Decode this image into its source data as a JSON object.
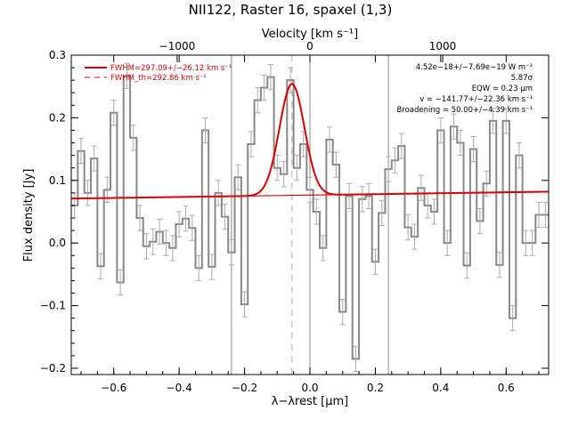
{
  "chart_data": {
    "type": "line",
    "title": "NII122, Raster 16, spaxel (1,3)",
    "xlabel": "λ−λrest [μm]",
    "ylabel": "Flux density [Jy]",
    "top_axis_label": "Velocity [km s⁻¹]",
    "xlim": [
      -0.73,
      0.73
    ],
    "ylim": [
      -0.21,
      0.3
    ],
    "x_ticks": [
      -0.6,
      -0.4,
      -0.2,
      0.0,
      0.2,
      0.4,
      0.6
    ],
    "x_tick_labels": [
      "−0.6",
      "−0.4",
      "−0.2",
      "0.0",
      "0.2",
      "0.4",
      "0.6"
    ],
    "y_ticks": [
      -0.2,
      -0.1,
      0.0,
      0.1,
      0.2,
      0.3
    ],
    "y_tick_labels": [
      "−0.2",
      "−0.1",
      "0.0",
      "0.1",
      "0.2",
      "0.3"
    ],
    "top_ticks": [
      -1000,
      0,
      1000
    ],
    "top_tick_labels": [
      "−1000",
      "0",
      "1000"
    ],
    "legend": {
      "placement": "top-left",
      "entries": [
        {
          "label": "FWHM=297.09+/−26.12 km s⁻¹",
          "style": "solid",
          "color": "#dd0000"
        },
        {
          "label": "FWHM_th=292.86 km s⁻¹",
          "style": "dashed",
          "color": "#dd0000"
        }
      ]
    },
    "annotations": [
      "4.52e−18+/−7.69e−19 W m⁻²",
      "5.87σ",
      "EQW = 0.23 μm",
      "v = −141.77+/−22.36 km s⁻¹",
      "Broadening = 50.00+/−4.39 km s⁻¹"
    ],
    "vertical_lines": [
      -0.24,
      0.0,
      0.24
    ],
    "dashed_vertical_line": -0.055,
    "series": [
      {
        "kind": "histogram-with-errors",
        "color": "#888888",
        "x": [
          -0.72,
          -0.7,
          -0.68,
          -0.66,
          -0.64,
          -0.62,
          -0.6,
          -0.58,
          -0.56,
          -0.54,
          -0.52,
          -0.5,
          -0.48,
          -0.46,
          -0.44,
          -0.42,
          -0.4,
          -0.38,
          -0.36,
          -0.34,
          -0.32,
          -0.3,
          -0.28,
          -0.26,
          -0.24,
          -0.22,
          -0.2,
          -0.18,
          -0.16,
          -0.14,
          -0.12,
          -0.1,
          -0.08,
          -0.06,
          -0.04,
          -0.02,
          0.0,
          0.02,
          0.04,
          0.06,
          0.08,
          0.1,
          0.12,
          0.14,
          0.16,
          0.18,
          0.2,
          0.22,
          0.24,
          0.26,
          0.28,
          0.3,
          0.32,
          0.34,
          0.36,
          0.38,
          0.4,
          0.42,
          0.44,
          0.46,
          0.48,
          0.5,
          0.52,
          0.54,
          0.56,
          0.58,
          0.6,
          0.62,
          0.64,
          0.66,
          0.68,
          0.7,
          0.72
        ],
        "y": [
          0.06,
          0.147,
          0.08,
          0.135,
          -0.037,
          0.085,
          0.208,
          -0.063,
          0.267,
          0.168,
          0.04,
          -0.005,
          0.002,
          0.018,
          0.0,
          -0.008,
          0.03,
          0.039,
          0.024,
          -0.04,
          0.18,
          -0.038,
          0.08,
          0.042,
          -0.015,
          0.105,
          -0.098,
          0.158,
          0.228,
          0.248,
          0.265,
          0.12,
          0.11,
          0.26,
          0.12,
          0.158,
          0.085,
          0.05,
          -0.008,
          0.165,
          0.125,
          -0.11,
          0.075,
          -0.185,
          0.07,
          0.075,
          -0.03,
          0.048,
          0.118,
          0.132,
          0.155,
          0.025,
          0.01,
          0.088,
          0.06,
          0.05,
          0.18,
          0.0,
          0.186,
          0.16,
          -0.036,
          0.15,
          0.035,
          0.095,
          0.195,
          -0.035,
          0.195,
          -0.12,
          0.14,
          0.0,
          0.0,
          0.045,
          0.045
        ],
        "err": [
          0.02,
          0.02,
          0.02,
          0.02,
          0.02,
          0.02,
          0.02,
          0.02,
          0.02,
          0.02,
          0.02,
          0.02,
          0.02,
          0.02,
          0.02,
          0.02,
          0.02,
          0.02,
          0.02,
          0.02,
          0.02,
          0.02,
          0.02,
          0.02,
          0.02,
          0.02,
          0.02,
          0.02,
          0.02,
          0.02,
          0.02,
          0.02,
          0.02,
          0.02,
          0.02,
          0.02,
          0.02,
          0.02,
          0.02,
          0.02,
          0.02,
          0.02,
          0.02,
          0.02,
          0.02,
          0.02,
          0.02,
          0.02,
          0.02,
          0.02,
          0.02,
          0.02,
          0.02,
          0.02,
          0.02,
          0.02,
          0.02,
          0.02,
          0.02,
          0.02,
          0.02,
          0.02,
          0.02,
          0.02,
          0.02,
          0.02,
          0.02,
          0.02,
          0.02,
          0.02,
          0.02,
          0.02,
          0.02
        ]
      },
      {
        "kind": "fit",
        "color": "#dd0000",
        "baseline": [
          [
            -0.73,
            0.071
          ],
          [
            0.73,
            0.082
          ]
        ],
        "gaussian": {
          "center": -0.055,
          "amplitude": 0.178,
          "fwhm": 0.09
        }
      }
    ]
  }
}
